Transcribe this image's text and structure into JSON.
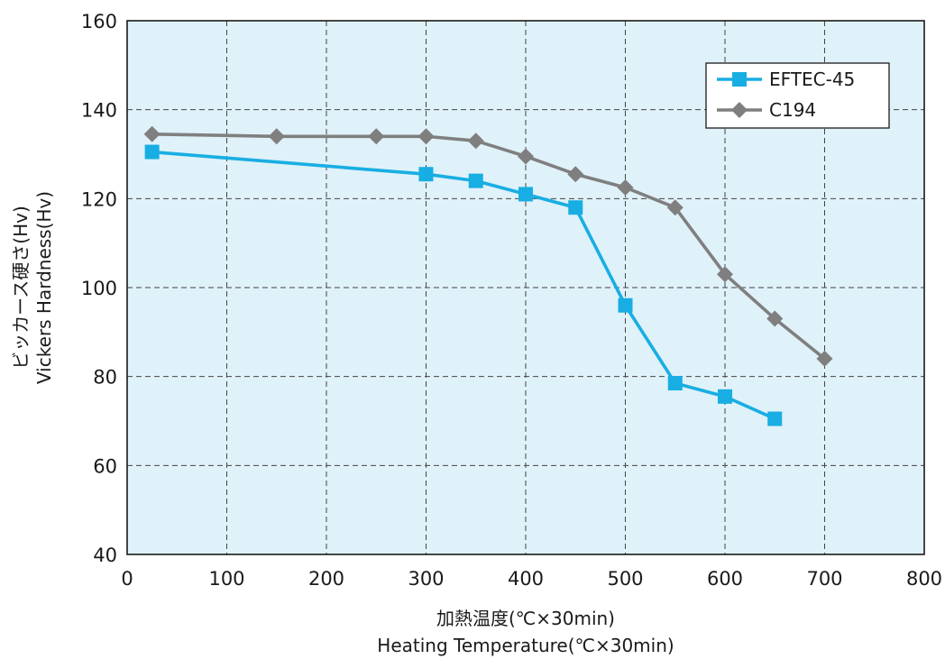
{
  "chart_data": {
    "type": "line",
    "xlabel_jp": "加熱温度(℃×30min)",
    "xlabel_en": "Heating Temperature(℃×30min)",
    "ylabel_jp": "ビッカース硬さ(Hv)",
    "ylabel_en": "Vickers Hardness(Hv)",
    "xlim": [
      0,
      800
    ],
    "ylim": [
      40,
      160
    ],
    "xticks": [
      0,
      100,
      200,
      300,
      400,
      500,
      600,
      700,
      800
    ],
    "yticks": [
      40,
      60,
      80,
      100,
      120,
      140,
      160
    ],
    "grid": true,
    "legend_position": "top-right",
    "background_color": "#dff1f9",
    "series": [
      {
        "name": "EFTEC-45",
        "color": "#18aee3",
        "marker": "square",
        "x": [
          25,
          300,
          350,
          400,
          450,
          500,
          550,
          600,
          650
        ],
        "y": [
          130.5,
          125.5,
          124,
          121,
          118,
          96,
          78.5,
          75.5,
          70.5
        ]
      },
      {
        "name": "C194",
        "color": "#7f7f7f",
        "marker": "diamond",
        "x": [
          25,
          150,
          250,
          300,
          350,
          400,
          450,
          500,
          550,
          600,
          650,
          700
        ],
        "y": [
          134.5,
          134,
          134,
          134,
          133,
          129.5,
          125.5,
          122.5,
          118,
          103,
          93,
          84
        ]
      }
    ]
  }
}
